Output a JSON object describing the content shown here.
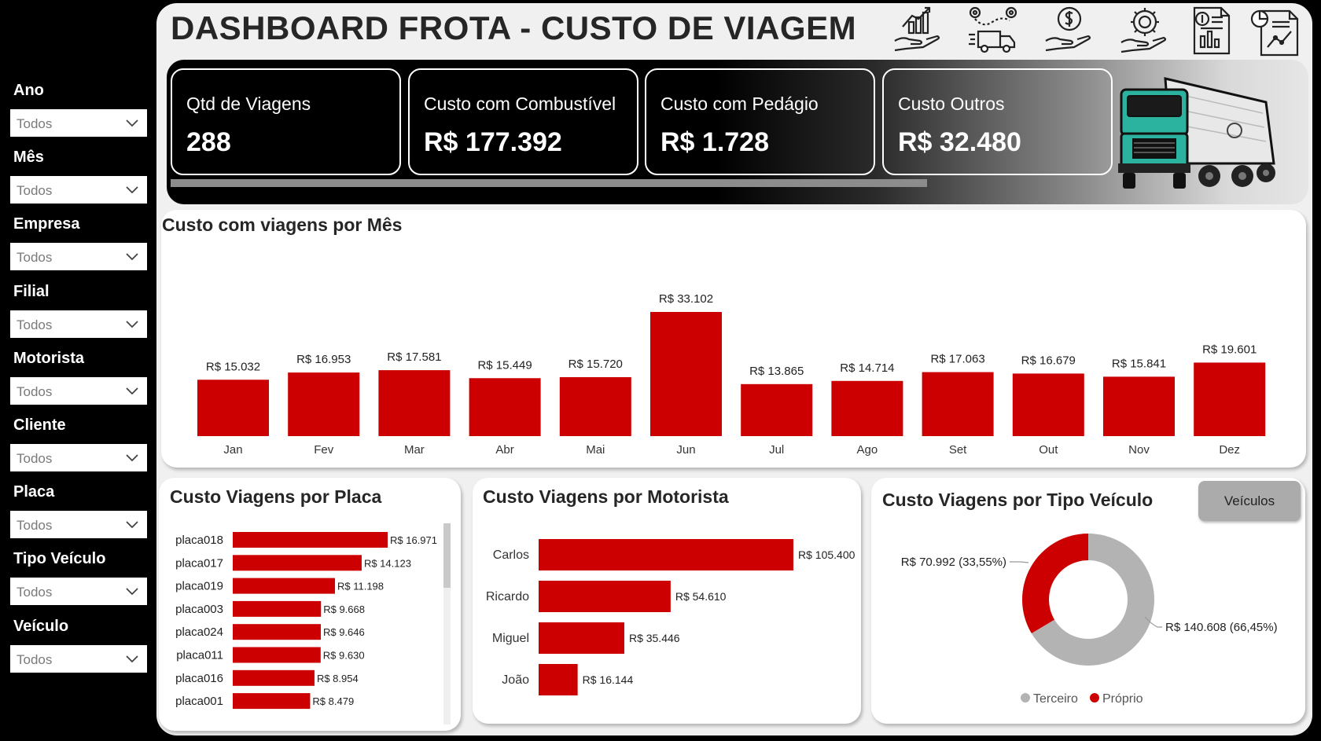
{
  "header": {
    "title": "DASHBOARD FROTA - CUSTO DE VIAGEM"
  },
  "header_icons": [
    "growth-chart-hand-icon",
    "delivery-route-truck-icon",
    "dollar-hand-icon",
    "gear-dollar-icon",
    "financial-report-icon",
    "analytics-document-icon"
  ],
  "filters": [
    {
      "label": "Ano",
      "value": "Todos"
    },
    {
      "label": "Mês",
      "value": "Todos"
    },
    {
      "label": "Empresa",
      "value": "Todos"
    },
    {
      "label": "Filial",
      "value": "Todos"
    },
    {
      "label": "Motorista",
      "value": "Todos"
    },
    {
      "label": "Cliente",
      "value": "Todos"
    },
    {
      "label": "Placa",
      "value": "Todos"
    },
    {
      "label": "Tipo Veículo",
      "value": "Todos"
    },
    {
      "label": "Veículo",
      "value": "Todos"
    }
  ],
  "kpis": [
    {
      "label": "Qtd de Viagens",
      "value": "288"
    },
    {
      "label": "Custo com Combustível",
      "value": "R$ 177.392"
    },
    {
      "label": "Custo com Pedágio",
      "value": "R$ 1.728"
    },
    {
      "label": "Custo Outros",
      "value": "R$ 32.480"
    }
  ],
  "colors": {
    "accent": "#cc0000",
    "grey_series": "#b3b3b3",
    "truck_teal": "#2bb3a0"
  },
  "vehicles_button": {
    "label": "Veículos"
  },
  "chart_data": [
    {
      "type": "bar",
      "title": "Custo com viagens por Mês",
      "categories": [
        "Jan",
        "Fev",
        "Mar",
        "Abr",
        "Mai",
        "Jun",
        "Jul",
        "Ago",
        "Set",
        "Out",
        "Nov",
        "Dez"
      ],
      "values": [
        15032,
        16953,
        17581,
        15449,
        15720,
        33102,
        13865,
        14714,
        17063,
        16679,
        15841,
        19601
      ],
      "labels": [
        "R$ 15.032",
        "R$ 16.953",
        "R$ 17.581",
        "R$ 15.449",
        "R$ 15.720",
        "R$ 33.102",
        "R$ 13.865",
        "R$ 14.714",
        "R$ 17.063",
        "R$ 16.679",
        "R$ 15.841",
        "R$ 19.601"
      ]
    },
    {
      "type": "bar",
      "orientation": "horizontal",
      "title": "Custo Viagens por Placa",
      "categories": [
        "placa018",
        "placa017",
        "placa019",
        "placa003",
        "placa024",
        "placa011",
        "placa016",
        "placa001"
      ],
      "values": [
        16971,
        14123,
        11198,
        9668,
        9646,
        9630,
        8954,
        8479
      ],
      "labels": [
        "R$ 16.971",
        "R$ 14.123",
        "R$ 11.198",
        "R$ 9.668",
        "R$ 9.646",
        "R$ 9.630",
        "R$ 8.954",
        "R$ 8.479"
      ]
    },
    {
      "type": "bar",
      "orientation": "horizontal",
      "title": "Custo Viagens por Motorista",
      "categories": [
        "Carlos",
        "Ricardo",
        "Miguel",
        "João"
      ],
      "values": [
        105400,
        54610,
        35446,
        16144
      ],
      "labels": [
        "R$ 105.400",
        "R$ 54.610",
        "R$ 35.446",
        "R$ 16.144"
      ]
    },
    {
      "type": "pie",
      "donut": true,
      "title": "Custo Viagens por Tipo Veículo",
      "legend": [
        "Terceiro",
        "Próprio"
      ],
      "values": [
        140608,
        70992
      ],
      "percents": [
        66.45,
        33.55
      ],
      "labels": [
        "R$ 140.608 (66,45%)",
        "R$ 70.992 (33,55%)"
      ]
    }
  ]
}
